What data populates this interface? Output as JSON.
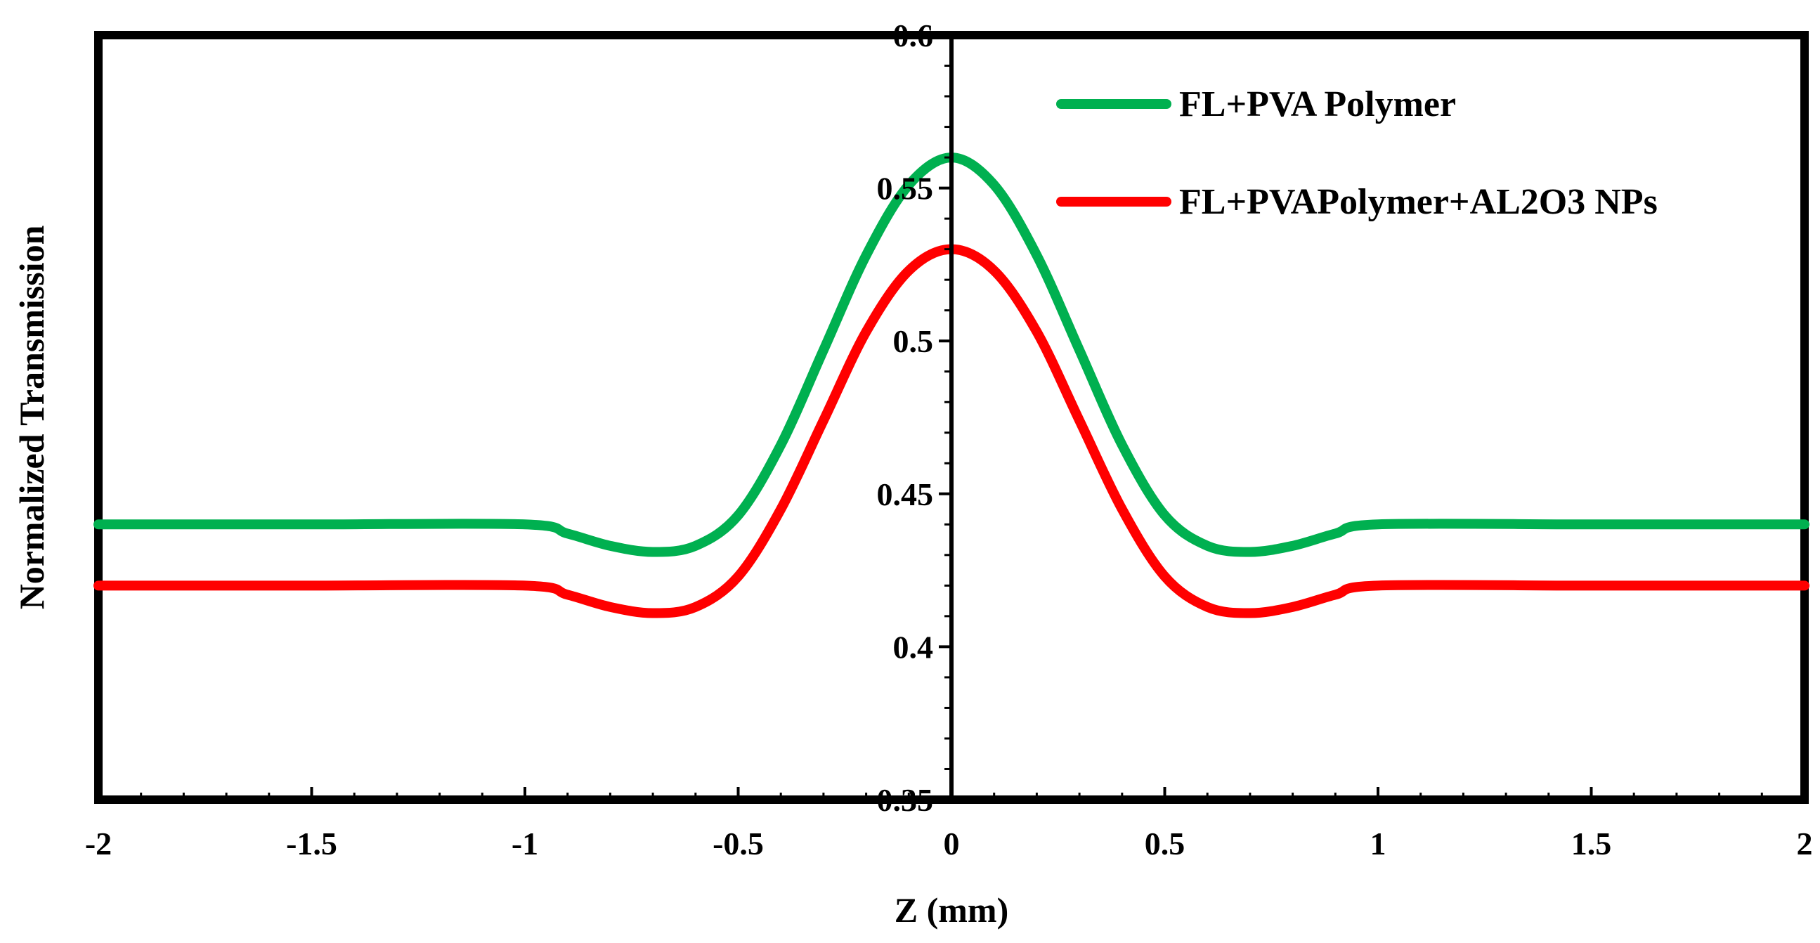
{
  "chart_data": {
    "type": "line",
    "title": "",
    "xlabel": "Z (mm)",
    "ylabel": "Normalized Transmission",
    "xlim": [
      -2,
      2
    ],
    "ylim": [
      0.35,
      0.6
    ],
    "x_ticks": [
      -2,
      -1.5,
      -1,
      -0.5,
      0,
      0.5,
      1,
      1.5,
      2
    ],
    "x_tick_labels": [
      "-2",
      "-1.5",
      "-1",
      "-0.5",
      "0",
      "0.5",
      "1",
      "1.5",
      "2"
    ],
    "y_ticks": [
      0.35,
      0.4,
      0.45,
      0.5,
      0.55,
      0.6
    ],
    "y_tick_labels": [
      "0.35",
      "0.4",
      "0.45",
      "0.5",
      "0.55",
      "0.6"
    ],
    "x": [
      -2,
      -1.5,
      -1,
      -0.9,
      -0.8,
      -0.7,
      -0.6,
      -0.5,
      -0.4,
      -0.3,
      -0.2,
      -0.1,
      0,
      0.1,
      0.2,
      0.3,
      0.4,
      0.5,
      0.6,
      0.7,
      0.8,
      0.9,
      1,
      1.5,
      2
    ],
    "series": [
      {
        "name": "FL+PVA Polymer",
        "color": "#00b050",
        "values": [
          0.44,
          0.44,
          0.44,
          0.437,
          0.433,
          0.431,
          0.433,
          0.443,
          0.466,
          0.497,
          0.528,
          0.551,
          0.56,
          0.551,
          0.528,
          0.497,
          0.466,
          0.443,
          0.433,
          0.431,
          0.433,
          0.437,
          0.44,
          0.44,
          0.44
        ]
      },
      {
        "name": "FL+PVAPolymer+AL2O3 NPs",
        "color": "#ff0000",
        "values": [
          0.42,
          0.42,
          0.42,
          0.417,
          0.413,
          0.411,
          0.413,
          0.423,
          0.445,
          0.474,
          0.503,
          0.523,
          0.53,
          0.523,
          0.503,
          0.474,
          0.445,
          0.423,
          0.413,
          0.411,
          0.413,
          0.417,
          0.42,
          0.42,
          0.42
        ]
      }
    ],
    "legend_position": "top-right",
    "grid": false
  }
}
